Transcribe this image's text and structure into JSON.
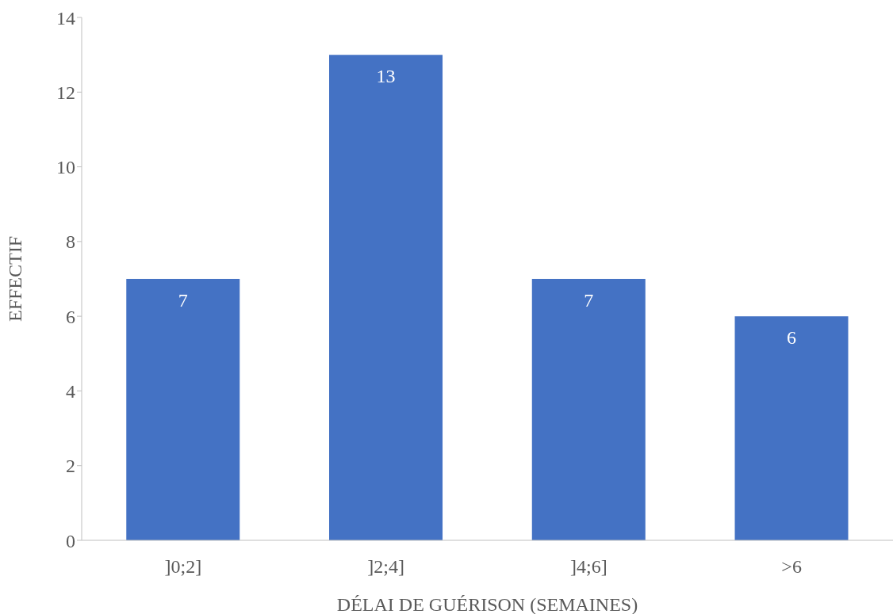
{
  "chart_data": {
    "type": "bar",
    "xlabel": "DÉLAI DE GUÉRISON (SEMAINES)",
    "ylabel": "EFFECTIF",
    "categories": [
      "]0;2]",
      "]2;4]",
      "]4;6]",
      ">6"
    ],
    "values": [
      7,
      13,
      7,
      6
    ],
    "color": "#4472c4",
    "ylim": [
      0,
      14
    ],
    "yticks": [
      0,
      2,
      4,
      6,
      8,
      10,
      12,
      14
    ],
    "grid": false,
    "data_labels": true
  }
}
